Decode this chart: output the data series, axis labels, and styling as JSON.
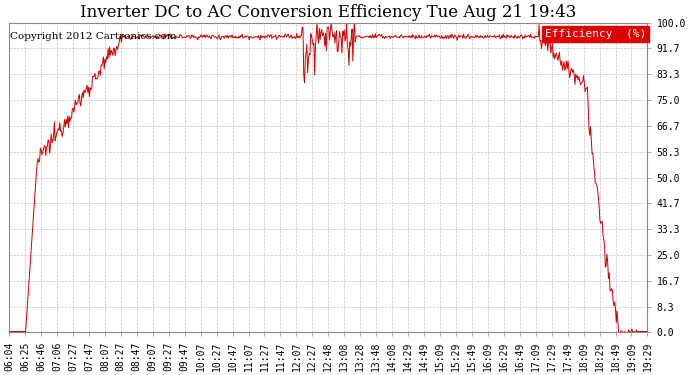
{
  "title": "Inverter DC to AC Conversion Efficiency Tue Aug 21 19:43",
  "copyright": "Copyright 2012 Cartronics.com",
  "legend_label": "Efficiency  (%)",
  "legend_bg": "#dd0000",
  "legend_text_color": "#ffffff",
  "line_color": "#cc0000",
  "bg_color": "#ffffff",
  "plot_bg_color": "#ffffff",
  "grid_color": "#aaaaaa",
  "ylim": [
    0.0,
    100.0
  ],
  "yticks": [
    0.0,
    8.3,
    16.7,
    25.0,
    33.3,
    41.7,
    50.0,
    58.3,
    66.7,
    75.0,
    83.3,
    91.7,
    100.0
  ],
  "x_tick_labels": [
    "06:04",
    "06:25",
    "06:46",
    "07:06",
    "07:27",
    "07:47",
    "08:07",
    "08:27",
    "08:47",
    "09:07",
    "09:27",
    "09:47",
    "10:07",
    "10:27",
    "10:47",
    "11:07",
    "11:27",
    "11:47",
    "12:07",
    "12:27",
    "12:48",
    "13:08",
    "13:28",
    "13:48",
    "14:08",
    "14:29",
    "14:49",
    "15:09",
    "15:29",
    "15:49",
    "16:09",
    "16:29",
    "16:49",
    "17:09",
    "17:29",
    "17:49",
    "18:09",
    "18:29",
    "18:49",
    "19:09",
    "19:29"
  ],
  "title_fontsize": 12,
  "copyright_fontsize": 7.5,
  "tick_fontsize": 7,
  "figsize": [
    6.9,
    3.75
  ],
  "dpi": 100
}
